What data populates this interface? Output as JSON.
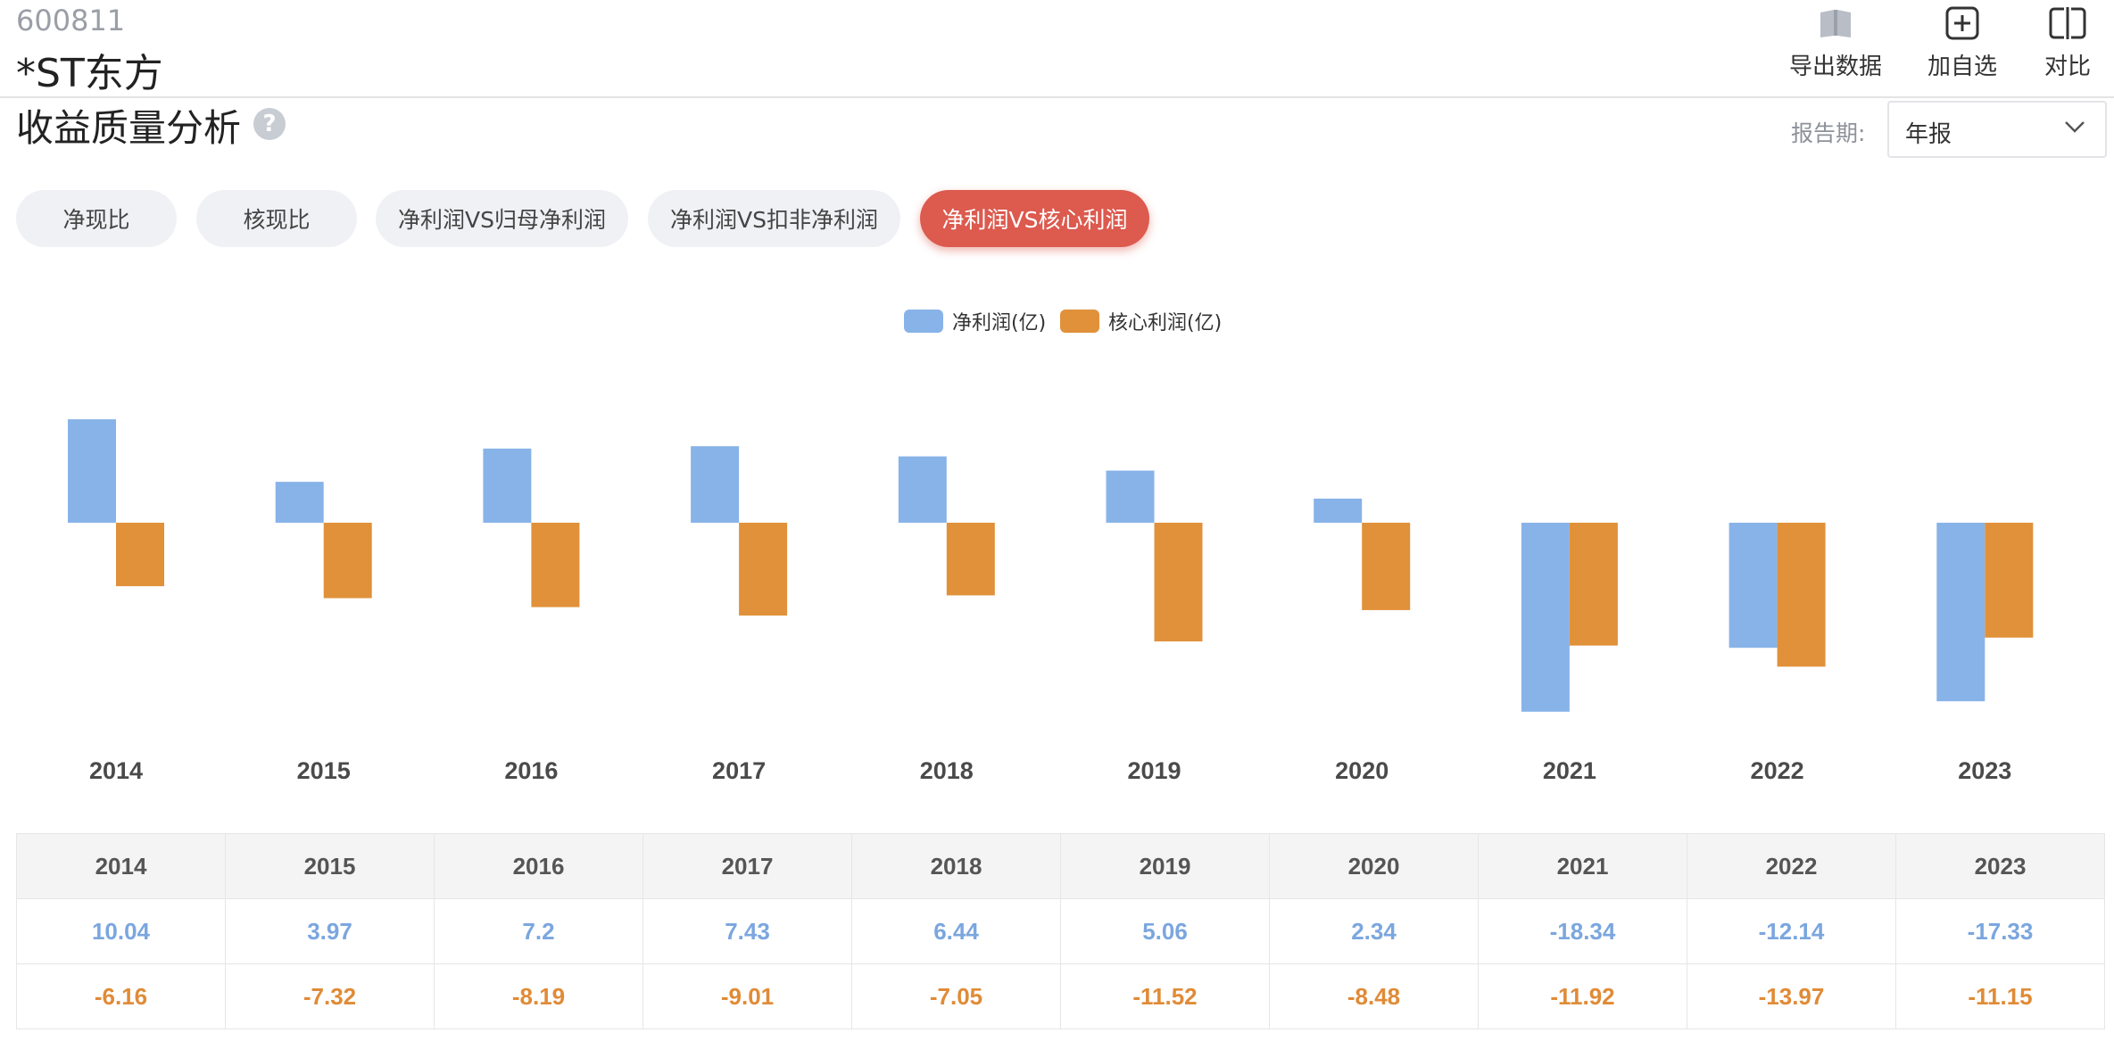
{
  "header": {
    "stock_code": "600811",
    "stock_name": "*ST东方",
    "actions": [
      {
        "label": "导出数据",
        "icon": "book-icon"
      },
      {
        "label": "加自选",
        "icon": "plus-square-icon"
      },
      {
        "label": "对比",
        "icon": "compare-icon"
      }
    ]
  },
  "section": {
    "title": "收益质量分析",
    "help_icon": "question-icon",
    "period_label": "报告期:",
    "period_value": "年报"
  },
  "tabs": [
    "净现比",
    "核现比",
    "净利润VS归母净利润",
    "净利润VS扣非净利润",
    "净利润VS核心利润"
  ],
  "active_tab": 4,
  "colors": {
    "net_profit": "#88b3e8",
    "core_profit": "#e0913a",
    "active_tab": "#dc5a4e"
  },
  "chart_data": {
    "type": "bar",
    "title": "",
    "xlabel": "",
    "ylabel": "",
    "grid": false,
    "legend_position": "top-center",
    "ylim": [
      -21,
      20
    ],
    "categories": [
      "2014",
      "2015",
      "2016",
      "2017",
      "2018",
      "2019",
      "2020",
      "2021",
      "2022",
      "2023"
    ],
    "series": [
      {
        "name": "净利润(亿)",
        "values": [
          10.04,
          3.97,
          7.2,
          7.43,
          6.44,
          5.06,
          2.34,
          -18.34,
          -12.14,
          -17.33
        ]
      },
      {
        "name": "核心利润(亿)",
        "values": [
          -6.16,
          -7.32,
          -8.19,
          -9.01,
          -7.05,
          -11.52,
          -8.48,
          -11.92,
          -13.97,
          -11.15
        ]
      }
    ]
  },
  "table": {
    "headers": [
      "2014",
      "2015",
      "2016",
      "2017",
      "2018",
      "2019",
      "2020",
      "2021",
      "2022",
      "2023"
    ],
    "rows": [
      [
        "10.04",
        "3.97",
        "7.2",
        "7.43",
        "6.44",
        "5.06",
        "2.34",
        "-18.34",
        "-12.14",
        "-17.33"
      ],
      [
        "-6.16",
        "-7.32",
        "-8.19",
        "-9.01",
        "-7.05",
        "-11.52",
        "-8.48",
        "-11.92",
        "-13.97",
        "-11.15"
      ]
    ]
  }
}
